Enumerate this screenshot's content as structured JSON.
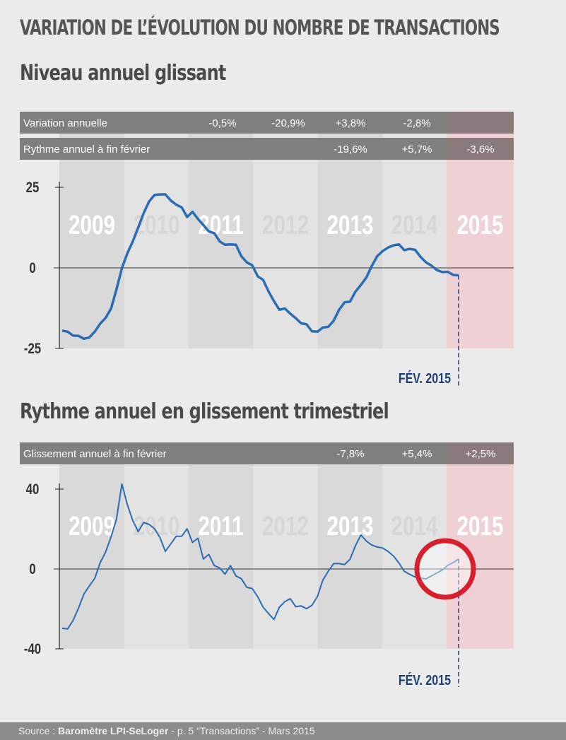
{
  "title": "VARIATION DE L’ÉVOLUTION DU NOMBRE DE TRANSACTIONS",
  "colors": {
    "line": "#2a6db5",
    "band_dark": "#d9d9d9",
    "band_light": "#e3e3e3",
    "highlight": "#efd0d4",
    "bar": "#7f7f7f",
    "circle": "#d7202b",
    "marker": "#1f3f77"
  },
  "years": [
    "2009",
    "2010",
    "2011",
    "2012",
    "2013",
    "2014",
    "2015"
  ],
  "chart_data": [
    {
      "type": "line",
      "subtitle": "Niveau annuel glissant",
      "ylim": [
        -25,
        25
      ],
      "yticks": [
        "25",
        "0",
        "-25"
      ],
      "marker_label": "FÉV. 2015",
      "table": [
        {
          "label": "Variation annuelle",
          "values": [
            "",
            "-0,5%",
            "-20,9%",
            "+3,8%",
            "-2,8%",
            ""
          ]
        },
        {
          "label": "Rythme annuel à fin février",
          "values": [
            "",
            "",
            "",
            "-19,6%",
            "+5,7%",
            "-3,6%"
          ]
        }
      ],
      "x_start": "2009-01",
      "x_end": "2015-02",
      "values": [
        -19.5,
        -19.8,
        -21,
        -21.1,
        -22,
        -21.6,
        -19.8,
        -17.3,
        -15.5,
        -12.6,
        -6.7,
        -0.1,
        4.5,
        8.2,
        12.5,
        17,
        20.6,
        22.6,
        22.8,
        22.8,
        20.9,
        19.6,
        18.8,
        15.8,
        17.4,
        15.2,
        13.3,
        11.3,
        10.8,
        8.2,
        7.2,
        7.3,
        7.2,
        3.6,
        1.7,
        0.8,
        -2.6,
        -3.7,
        -7.3,
        -10.3,
        -13,
        -12.6,
        -14.2,
        -15.6,
        -17.2,
        -17.5,
        -19.7,
        -19.8,
        -18.5,
        -18.3,
        -16.4,
        -13,
        -10.7,
        -10.5,
        -7.4,
        -5.3,
        -3,
        0.5,
        3.6,
        5.2,
        6.3,
        7,
        7.3,
        5.5,
        5.9,
        5.6,
        3.4,
        1.7,
        0.7,
        -0.7,
        -1.3,
        -1.2,
        -2.2,
        -2.3
      ]
    },
    {
      "type": "line",
      "subtitle": "Rythme annuel en glissement trimestriel",
      "ylim": [
        -40,
        40
      ],
      "yticks": [
        "40",
        "0",
        "-40"
      ],
      "marker_label": "FÉV. 2015",
      "table": [
        {
          "label": "Glissement annuel à fin février",
          "values": [
            "",
            "",
            "",
            "-7,8%",
            "+5,4%",
            "+2,5%"
          ]
        }
      ],
      "x_start": "2009-01",
      "x_end": "2015-02",
      "values": [
        -29.7,
        -30,
        -25.8,
        -19.6,
        -12.6,
        -8.5,
        -4.7,
        3.2,
        8.5,
        16.1,
        24.9,
        42.6,
        32.2,
        24.2,
        18.7,
        23.3,
        22.3,
        20.2,
        15.8,
        8.8,
        12.6,
        16.4,
        16.4,
        20.1,
        13.3,
        15.4,
        5,
        7.3,
        1.7,
        0.5,
        -2.6,
        1.7,
        -3.5,
        -4.9,
        -9.2,
        -9.8,
        -13.9,
        -19.1,
        -22.3,
        -25.3,
        -19.1,
        -16.4,
        -14.9,
        -18.9,
        -18.5,
        -19.9,
        -18.2,
        -13.8,
        -5.6,
        -1.1,
        2.7,
        2.7,
        2.2,
        4.8,
        11.6,
        17,
        14,
        12,
        11,
        10.5,
        8.8,
        6.5,
        3,
        -1.2,
        -2.7,
        -4,
        -4.6,
        -5,
        -3.5,
        -2,
        -0.5,
        1.8,
        3.2,
        5
      ]
    }
  ],
  "source": {
    "prefix": "Source : ",
    "bold": "Baromètre LPI-SeLoger",
    "suffix": " - p. 5 “Transactions” - Mars 2015"
  }
}
